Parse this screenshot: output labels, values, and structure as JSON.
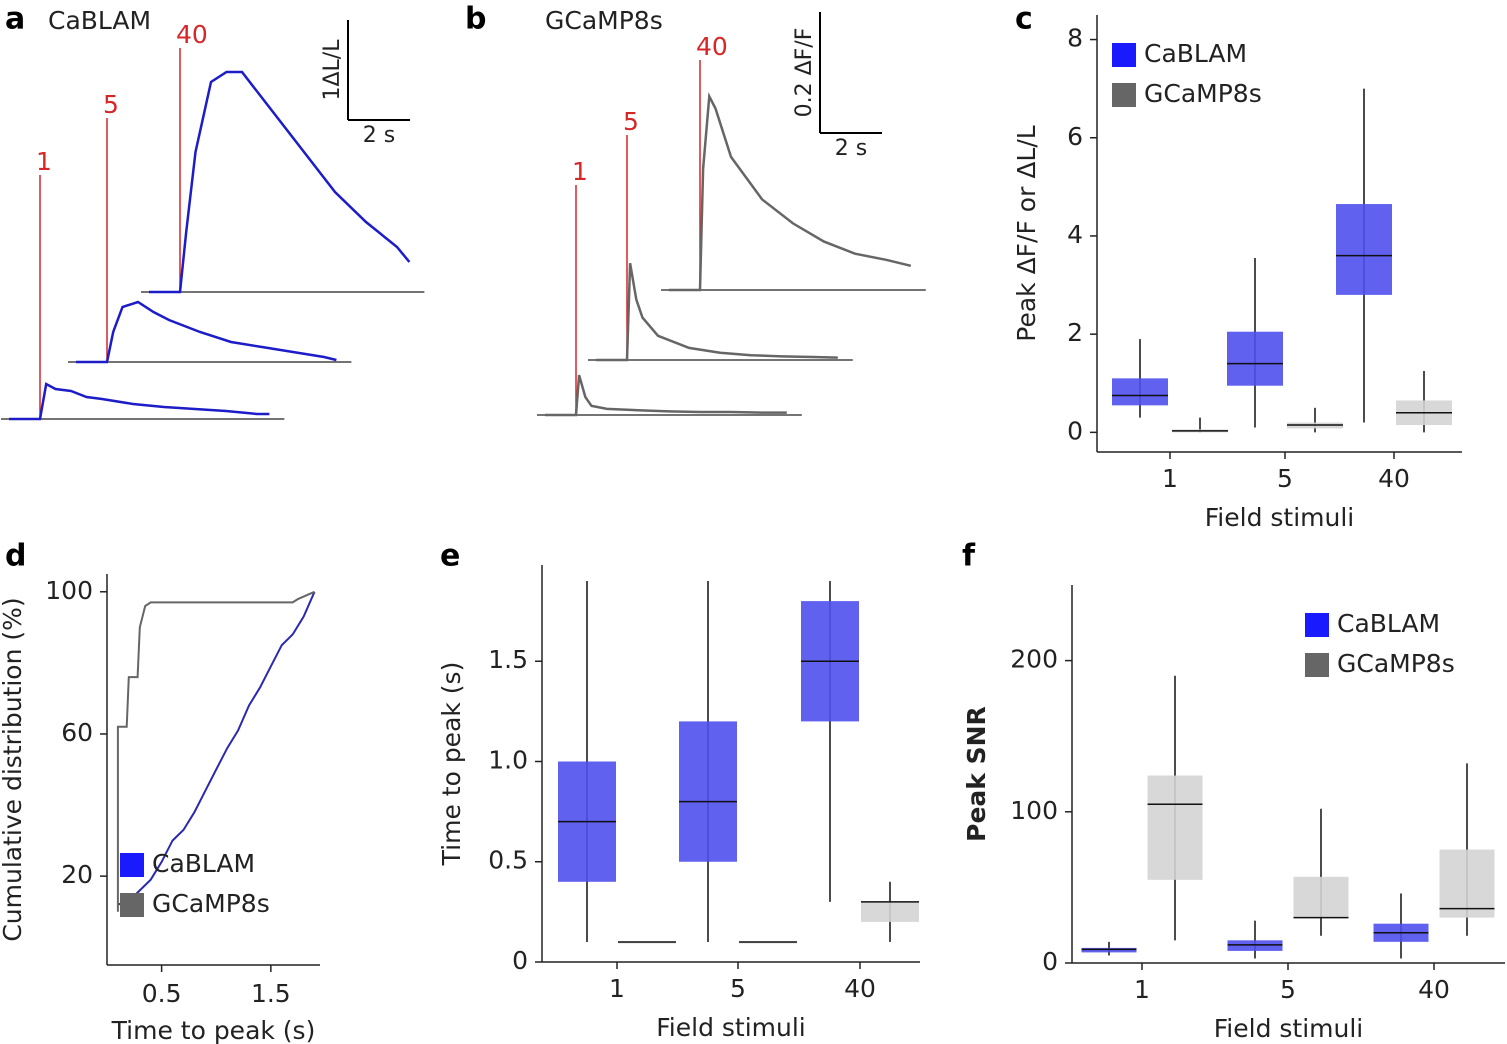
{
  "chart_data": [
    {
      "panel": "a",
      "title": "CaBLAM",
      "type": "trace",
      "marker_color": "#d62728",
      "x": [
        -1,
        -0.5,
        0,
        0.2,
        0.5,
        1,
        1.5,
        2,
        3,
        4,
        5,
        6,
        7,
        7.4
      ],
      "series": [
        {
          "name": "1",
          "color": "#1c1cc8",
          "values": [
            0,
            0,
            0,
            0.35,
            0.3,
            0.28,
            0.22,
            0.2,
            0.15,
            0.12,
            0.1,
            0.08,
            0.05,
            0.05
          ]
        },
        {
          "name": "5",
          "color": "#1c1cc8",
          "values": [
            0,
            0,
            0,
            0.3,
            0.55,
            0.6,
            0.5,
            0.42,
            0.3,
            0.2,
            0.15,
            0.1,
            0.05,
            0.02
          ]
        },
        {
          "name": "40",
          "color": "#1c1cc8",
          "values": [
            0,
            0,
            0,
            0.6,
            1.4,
            2.1,
            2.2,
            2.2,
            1.8,
            1.4,
            1.0,
            0.7,
            0.45,
            0.3
          ]
        }
      ],
      "scale_x": 2,
      "scale_y": 1,
      "scale_x_label": "2 s",
      "scale_y_label": "1ΔL/L"
    },
    {
      "panel": "b",
      "title": "GCaMP8s",
      "type": "trace",
      "marker_color": "#d62728",
      "x": [
        -1,
        -0.5,
        0,
        0.1,
        0.3,
        0.5,
        1,
        2,
        3,
        4,
        5,
        6,
        6.8
      ],
      "series": [
        {
          "name": "1",
          "color": "#666666",
          "values": [
            0,
            0,
            0,
            0.066,
            0.03,
            0.015,
            0.01,
            0.008,
            0.006,
            0.005,
            0.005,
            0.004,
            0.004
          ]
        },
        {
          "name": "5",
          "color": "#666666",
          "values": [
            0,
            0,
            0,
            0.16,
            0.1,
            0.07,
            0.04,
            0.02,
            0.012,
            0.008,
            0.006,
            0.005,
            0.004
          ]
        },
        {
          "name": "40",
          "color": "#666666",
          "values": [
            0,
            0,
            0,
            0.2,
            0.32,
            0.3,
            0.22,
            0.15,
            0.11,
            0.08,
            0.06,
            0.05,
            0.04
          ]
        }
      ],
      "scale_x": 2,
      "scale_y": 0.2,
      "scale_x_label": "2 s",
      "scale_y_label": "0.2 ΔF/F"
    },
    {
      "panel": "c",
      "type": "box",
      "categories": [
        "1",
        "5",
        "40"
      ],
      "xlabel": "Field stimuli",
      "ylabel": "Peak ΔF/F or ΔL/L",
      "ylim": [
        -0.4,
        8.5
      ],
      "yticks": [
        0,
        2,
        4,
        6,
        8
      ],
      "legend": "upper left",
      "series": [
        {
          "name": "CaBLAM",
          "color": "#1a1aff",
          "box_color": "#5050ee",
          "low": [
            0.3,
            0.1,
            0.2
          ],
          "q1": [
            0.55,
            0.95,
            2.8
          ],
          "median": [
            0.75,
            1.4,
            3.6
          ],
          "q3": [
            1.1,
            2.05,
            4.65
          ],
          "high": [
            1.9,
            3.55,
            7.0
          ]
        },
        {
          "name": "GCaMP8s",
          "color": "#666666",
          "box_color": "#d4d4d4",
          "low": [
            0,
            0,
            0
          ],
          "q1": [
            0,
            0.08,
            0.15
          ],
          "median": [
            0.03,
            0.15,
            0.4
          ],
          "q3": [
            0.06,
            0.2,
            0.65
          ],
          "high": [
            0.3,
            0.5,
            1.25
          ]
        }
      ]
    },
    {
      "panel": "d",
      "type": "line",
      "xlabel": "Time to peak (s)",
      "ylabel": "Cumulative distribution (%)",
      "xlim": [
        0,
        1.95
      ],
      "xticks": [
        0.5,
        1.5
      ],
      "ylim": [
        -5,
        105
      ],
      "yticks": [
        20,
        60,
        100
      ],
      "legend": "lower right",
      "series": [
        {
          "name": "CaBLAM",
          "color": "#1a1aff",
          "line_color": "#2a2ab0",
          "x": [
            0.1,
            0.2,
            0.3,
            0.4,
            0.5,
            0.6,
            0.7,
            0.8,
            0.9,
            1.0,
            1.1,
            1.2,
            1.3,
            1.4,
            1.5,
            1.6,
            1.7,
            1.8,
            1.9
          ],
          "values": [
            12,
            13,
            16,
            19,
            24,
            30,
            33,
            38,
            44,
            50,
            56,
            61,
            68,
            73,
            79,
            85,
            88,
            93,
            100
          ]
        },
        {
          "name": "GCaMP8s",
          "color": "#666666",
          "line_color": "#666666",
          "x": [
            0.1,
            0.1,
            0.18,
            0.2,
            0.28,
            0.3,
            0.35,
            0.4,
            1.7,
            1.75,
            1.9
          ],
          "values": [
            10,
            62,
            62,
            76,
            76,
            90,
            96,
            97,
            97,
            98,
            100
          ]
        }
      ]
    },
    {
      "panel": "e",
      "type": "box",
      "categories": [
        "1",
        "5",
        "40"
      ],
      "xlabel": "Field stimuli",
      "ylabel": "Time to peak (s)",
      "ylim": [
        0,
        1.98
      ],
      "yticks": [
        0,
        0.5,
        {
          "value": 1,
          "label": "1.0"
        },
        1.5
      ],
      "series": [
        {
          "color": "#1a1aff",
          "box_color": "#5050ee",
          "low": [
            0.1,
            0.1,
            0.3
          ],
          "q1": [
            0.4,
            0.5,
            1.2
          ],
          "median": [
            0.7,
            0.8,
            1.5
          ],
          "q3": [
            1.0,
            1.2,
            1.8
          ],
          "high": [
            1.9,
            1.9,
            1.9
          ]
        },
        {
          "color": "#666666",
          "box_color": "#d4d4d4",
          "low": [
            0.1,
            0.1,
            0.1
          ],
          "q1": [
            0.1,
            0.1,
            0.2
          ],
          "median": [
            0.1,
            0.1,
            0.3
          ],
          "q3": [
            0.1,
            0.1,
            0.3
          ],
          "high": [
            0.1,
            0.1,
            0.4
          ]
        }
      ]
    },
    {
      "panel": "f",
      "type": "box",
      "categories": [
        "1",
        "5",
        "40"
      ],
      "xlabel": "Field stimuli",
      "ylabel": "Peak SNR",
      "ylim": [
        0,
        250
      ],
      "yticks": [
        0,
        100,
        200
      ],
      "legend": "upper right",
      "series": [
        {
          "name": "CaBLAM",
          "color": "#1a1aff",
          "box_color": "#5050ee",
          "low": [
            5,
            3,
            3
          ],
          "q1": [
            7,
            8,
            14
          ],
          "median": [
            9,
            12,
            20
          ],
          "q3": [
            10,
            15,
            26
          ],
          "high": [
            14,
            28,
            46
          ]
        },
        {
          "name": "GCaMP8s",
          "color": "#666666",
          "box_color": "#d4d4d4",
          "low": [
            15,
            18,
            18
          ],
          "q1": [
            55,
            30,
            30
          ],
          "median": [
            105,
            30,
            36
          ],
          "q3": [
            124,
            57,
            75
          ],
          "high": [
            190,
            102,
            132
          ]
        }
      ]
    }
  ]
}
